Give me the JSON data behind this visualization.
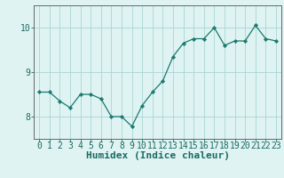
{
  "x": [
    0,
    1,
    2,
    3,
    4,
    5,
    6,
    7,
    8,
    9,
    10,
    11,
    12,
    13,
    14,
    15,
    16,
    17,
    18,
    19,
    20,
    21,
    22,
    23
  ],
  "y": [
    8.55,
    8.55,
    8.35,
    8.2,
    8.5,
    8.5,
    8.4,
    8.0,
    8.0,
    7.78,
    8.25,
    8.55,
    8.8,
    9.35,
    9.65,
    9.75,
    9.75,
    10.0,
    9.6,
    9.7,
    9.7,
    10.05,
    9.75,
    9.7
  ],
  "line_color": "#1a7a6e",
  "marker": "D",
  "marker_size": 2.2,
  "background_color": "#dff3f3",
  "grid_color": "#aad4d4",
  "xlabel": "Humidex (Indice chaleur)",
  "xlabel_fontsize": 8,
  "yticks": [
    8,
    9,
    10
  ],
  "ylim": [
    7.5,
    10.5
  ],
  "xlim": [
    -0.5,
    23.5
  ],
  "spine_color": "#666666",
  "tick_color": "#1a6a60",
  "tick_fontsize": 7,
  "xlabel_color": "#1a6a60",
  "xlabel_bold": true
}
